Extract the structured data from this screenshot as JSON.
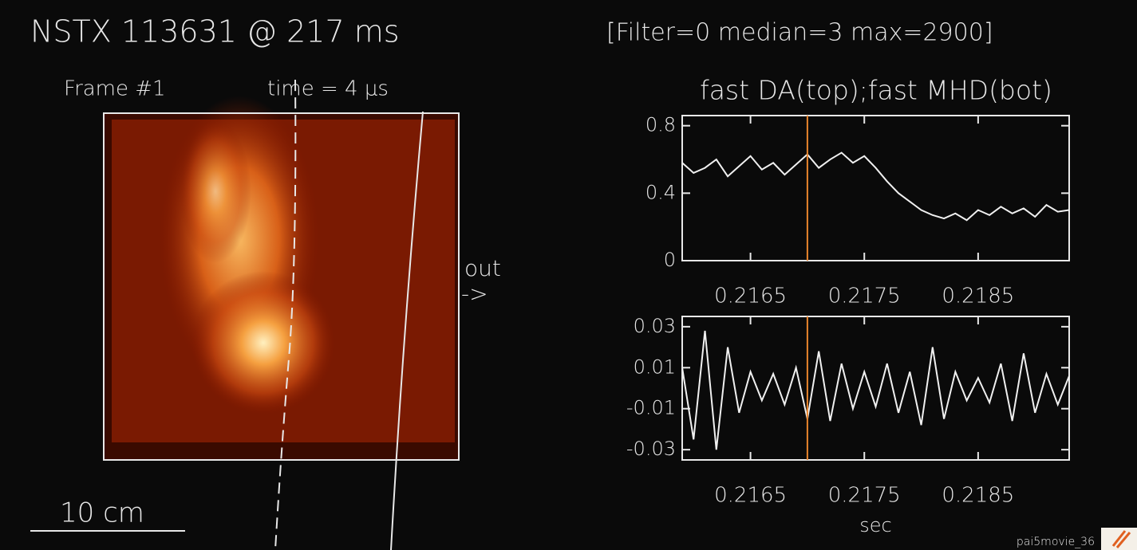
{
  "header": {
    "title": "NSTX 113631   @ 217 ms",
    "settings": "[Filter=0  median=3  max=2900]"
  },
  "image_panel": {
    "frame": "Frame #1",
    "time": "time = 4 μs",
    "direction": "out",
    "arrow": "->",
    "scale": "10 cm"
  },
  "plot_title": "fast DA(top);fast MHD(bot)",
  "footer": "pai5movie_36",
  "chart_data": [
    {
      "type": "line",
      "x": [
        0.2159,
        0.216,
        0.2161,
        0.2162,
        0.2163,
        0.2164,
        0.2165,
        0.2166,
        0.2167,
        0.2168,
        0.2169,
        0.217,
        0.2171,
        0.2172,
        0.2173,
        0.2174,
        0.2175,
        0.2176,
        0.2177,
        0.2178,
        0.2179,
        0.218,
        0.2181,
        0.2182,
        0.2183,
        0.2184,
        0.2185,
        0.2186,
        0.2187,
        0.2188,
        0.2189,
        0.219,
        0.2191,
        0.2192,
        0.2193
      ],
      "series": [
        {
          "color": "#f0f0f0",
          "values": [
            0.58,
            0.52,
            0.55,
            0.6,
            0.5,
            0.56,
            0.62,
            0.54,
            0.58,
            0.51,
            0.57,
            0.63,
            0.55,
            0.6,
            0.64,
            0.58,
            0.62,
            0.55,
            0.47,
            0.4,
            0.35,
            0.3,
            0.27,
            0.25,
            0.28,
            0.24,
            0.3,
            0.27,
            0.32,
            0.28,
            0.31,
            0.26,
            0.33,
            0.29,
            0.3
          ]
        }
      ],
      "xlim": [
        0.2159,
        0.2193
      ],
      "ylim": [
        0,
        0.86
      ],
      "xticks": [
        0.2165,
        0.2175,
        0.2185
      ],
      "yticks": [
        0,
        0.4,
        0.8
      ],
      "cursor": 0.217,
      "cursor_color": "#e8842c"
    },
    {
      "type": "line",
      "x": [
        0.2159,
        0.216,
        0.2161,
        0.2162,
        0.2163,
        0.2164,
        0.2165,
        0.2166,
        0.2167,
        0.2168,
        0.2169,
        0.217,
        0.2171,
        0.2172,
        0.2173,
        0.2174,
        0.2175,
        0.2176,
        0.2177,
        0.2178,
        0.2179,
        0.218,
        0.2181,
        0.2182,
        0.2183,
        0.2184,
        0.2185,
        0.2186,
        0.2187,
        0.2188,
        0.2189,
        0.219,
        0.2191,
        0.2192,
        0.2193
      ],
      "series": [
        {
          "color": "#f0f0f0",
          "values": [
            0.01,
            -0.025,
            0.028,
            -0.03,
            0.02,
            -0.012,
            0.008,
            -0.006,
            0.007,
            -0.008,
            0.01,
            -0.015,
            0.018,
            -0.016,
            0.012,
            -0.01,
            0.008,
            -0.009,
            0.012,
            -0.012,
            0.008,
            -0.018,
            0.02,
            -0.015,
            0.008,
            -0.006,
            0.005,
            -0.007,
            0.012,
            -0.016,
            0.017,
            -0.012,
            0.007,
            -0.008,
            0.006
          ]
        }
      ],
      "xlim": [
        0.2159,
        0.2193
      ],
      "ylim": [
        -0.035,
        0.035
      ],
      "xticks": [
        0.2165,
        0.2175,
        0.2185
      ],
      "yticks": [
        -0.03,
        -0.01,
        0.01,
        0.03
      ],
      "xlabel": "sec",
      "cursor": 0.217,
      "cursor_color": "#e8842c"
    }
  ]
}
